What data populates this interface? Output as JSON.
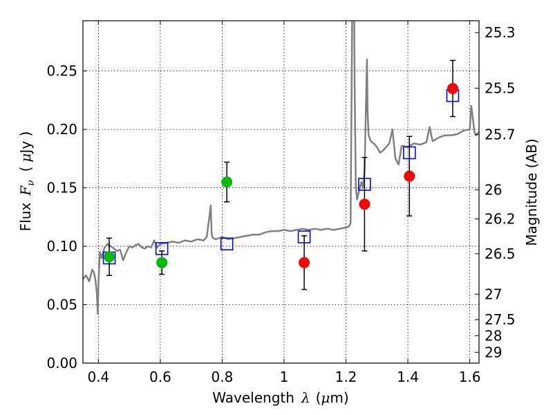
{
  "chart_data": {
    "type": "scatter",
    "xlabel": "Wavelength",
    "xlabel_symbol": "λ",
    "xlabel_unit_open": "(",
    "xlabel_unit_mu": "μ",
    "xlabel_unit_close": "m)",
    "ylabel": "Flux",
    "ylabel_symbol": "F",
    "ylabel_symbol_sub": "ν",
    "ylabel_unit_open": "(",
    "ylabel_unit_mu": "μ",
    "ylabel_unit_close": "Jy )",
    "y2label": "Magnitude (AB)",
    "xlim": [
      0.35,
      1.63
    ],
    "ylim": [
      0.0,
      0.293
    ],
    "grid": true,
    "x_ticks": [
      0.4,
      0.6,
      0.8,
      1.0,
      1.2,
      1.4,
      1.6
    ],
    "x_tick_labels": [
      "0.4",
      "0.6",
      "0.8",
      "1",
      "1.2",
      "1.4",
      "1.6"
    ],
    "y_ticks": [
      0.0,
      0.05,
      0.1,
      0.15,
      0.2,
      0.25
    ],
    "y_tick_labels": [
      "0.00",
      "0.05",
      "0.10",
      "0.15",
      "0.20",
      "0.25"
    ],
    "y2_ticks": [
      {
        "label": "25.3",
        "flux": 0.2828
      },
      {
        "label": "25.5",
        "flux": 0.2353
      },
      {
        "label": "25.7",
        "flux": 0.1955
      },
      {
        "label": "26",
        "flux": 0.1483
      },
      {
        "label": "26.2",
        "flux": 0.1234
      },
      {
        "label": "26.5",
        "flux": 0.0936
      },
      {
        "label": "27",
        "flux": 0.059
      },
      {
        "label": "27.5",
        "flux": 0.0372
      },
      {
        "label": "28",
        "flux": 0.0235
      },
      {
        "label": "29",
        "flux": 0.0093
      }
    ],
    "colors": {
      "spectrum": "#808080",
      "model": "#0000ff",
      "green_points": "#00bb00",
      "red_points": "#ff0000",
      "errorbars": "#000000",
      "grid": "#000000"
    },
    "spectrum": {
      "name": "",
      "x": [
        0.35,
        0.36,
        0.37,
        0.38,
        0.385,
        0.39,
        0.395,
        0.398,
        0.4,
        0.402,
        0.405,
        0.41,
        0.42,
        0.43,
        0.44,
        0.45,
        0.46,
        0.47,
        0.48,
        0.49,
        0.5,
        0.51,
        0.52,
        0.53,
        0.54,
        0.55,
        0.56,
        0.57,
        0.58,
        0.59,
        0.6,
        0.62,
        0.64,
        0.66,
        0.68,
        0.7,
        0.72,
        0.74,
        0.75,
        0.76,
        0.763,
        0.766,
        0.77,
        0.78,
        0.8,
        0.82,
        0.84,
        0.86,
        0.88,
        0.9,
        0.92,
        0.94,
        0.96,
        0.98,
        1.0,
        1.02,
        1.04,
        1.06,
        1.08,
        1.1,
        1.12,
        1.14,
        1.16,
        1.18,
        1.2,
        1.21,
        1.215,
        1.22,
        1.223,
        1.226,
        1.228,
        1.232,
        1.236,
        1.24,
        1.25,
        1.255,
        1.26,
        1.263,
        1.266,
        1.268,
        1.27,
        1.273,
        1.28,
        1.29,
        1.3,
        1.31,
        1.32,
        1.33,
        1.34,
        1.35,
        1.36,
        1.37,
        1.38,
        1.4,
        1.42,
        1.44,
        1.46,
        1.47,
        1.48,
        1.5,
        1.52,
        1.54,
        1.56,
        1.58,
        1.6,
        1.605,
        1.61,
        1.615,
        1.62,
        1.63
      ],
      "y": [
        0.072,
        0.075,
        0.07,
        0.08,
        0.078,
        0.072,
        0.06,
        0.042,
        0.068,
        0.08,
        0.095,
        0.09,
        0.099,
        0.102,
        0.1,
        0.098,
        0.096,
        0.097,
        0.088,
        0.095,
        0.1,
        0.099,
        0.101,
        0.102,
        0.099,
        0.098,
        0.1,
        0.099,
        0.105,
        0.099,
        0.102,
        0.103,
        0.104,
        0.103,
        0.105,
        0.104,
        0.106,
        0.105,
        0.108,
        0.128,
        0.135,
        0.11,
        0.107,
        0.106,
        0.108,
        0.106,
        0.107,
        0.108,
        0.109,
        0.11,
        0.11,
        0.112,
        0.113,
        0.113,
        0.114,
        0.113,
        0.114,
        0.115,
        0.114,
        0.115,
        0.114,
        0.115,
        0.114,
        0.115,
        0.116,
        0.117,
        0.12,
        0.3,
        0.38,
        0.33,
        0.24,
        0.15,
        0.14,
        0.145,
        0.155,
        0.15,
        0.165,
        0.2,
        0.24,
        0.26,
        0.215,
        0.195,
        0.19,
        0.188,
        0.185,
        0.18,
        0.182,
        0.185,
        0.188,
        0.2,
        0.175,
        0.17,
        0.186,
        0.185,
        0.188,
        0.187,
        0.189,
        0.202,
        0.19,
        0.193,
        0.195,
        0.195,
        0.196,
        0.199,
        0.2,
        0.22,
        0.21,
        0.198,
        0.195,
        0.198
      ]
    },
    "model_points": {
      "name": "",
      "x": [
        0.435,
        0.605,
        0.815,
        1.065,
        1.26,
        1.405,
        1.545
      ],
      "y": [
        0.09,
        0.098,
        0.102,
        0.108,
        0.153,
        0.18,
        0.229
      ]
    },
    "green_points": {
      "name": "",
      "x": [
        0.435,
        0.605,
        0.815
      ],
      "y": [
        0.091,
        0.086,
        0.155
      ],
      "err": [
        0.016,
        0.01,
        0.017
      ]
    },
    "red_points": {
      "name": "",
      "x": [
        1.065,
        1.26,
        1.405,
        1.545
      ],
      "y": [
        0.086,
        0.136,
        0.16,
        0.235
      ],
      "err": [
        0.023,
        0.04,
        0.034,
        0.024
      ]
    }
  }
}
